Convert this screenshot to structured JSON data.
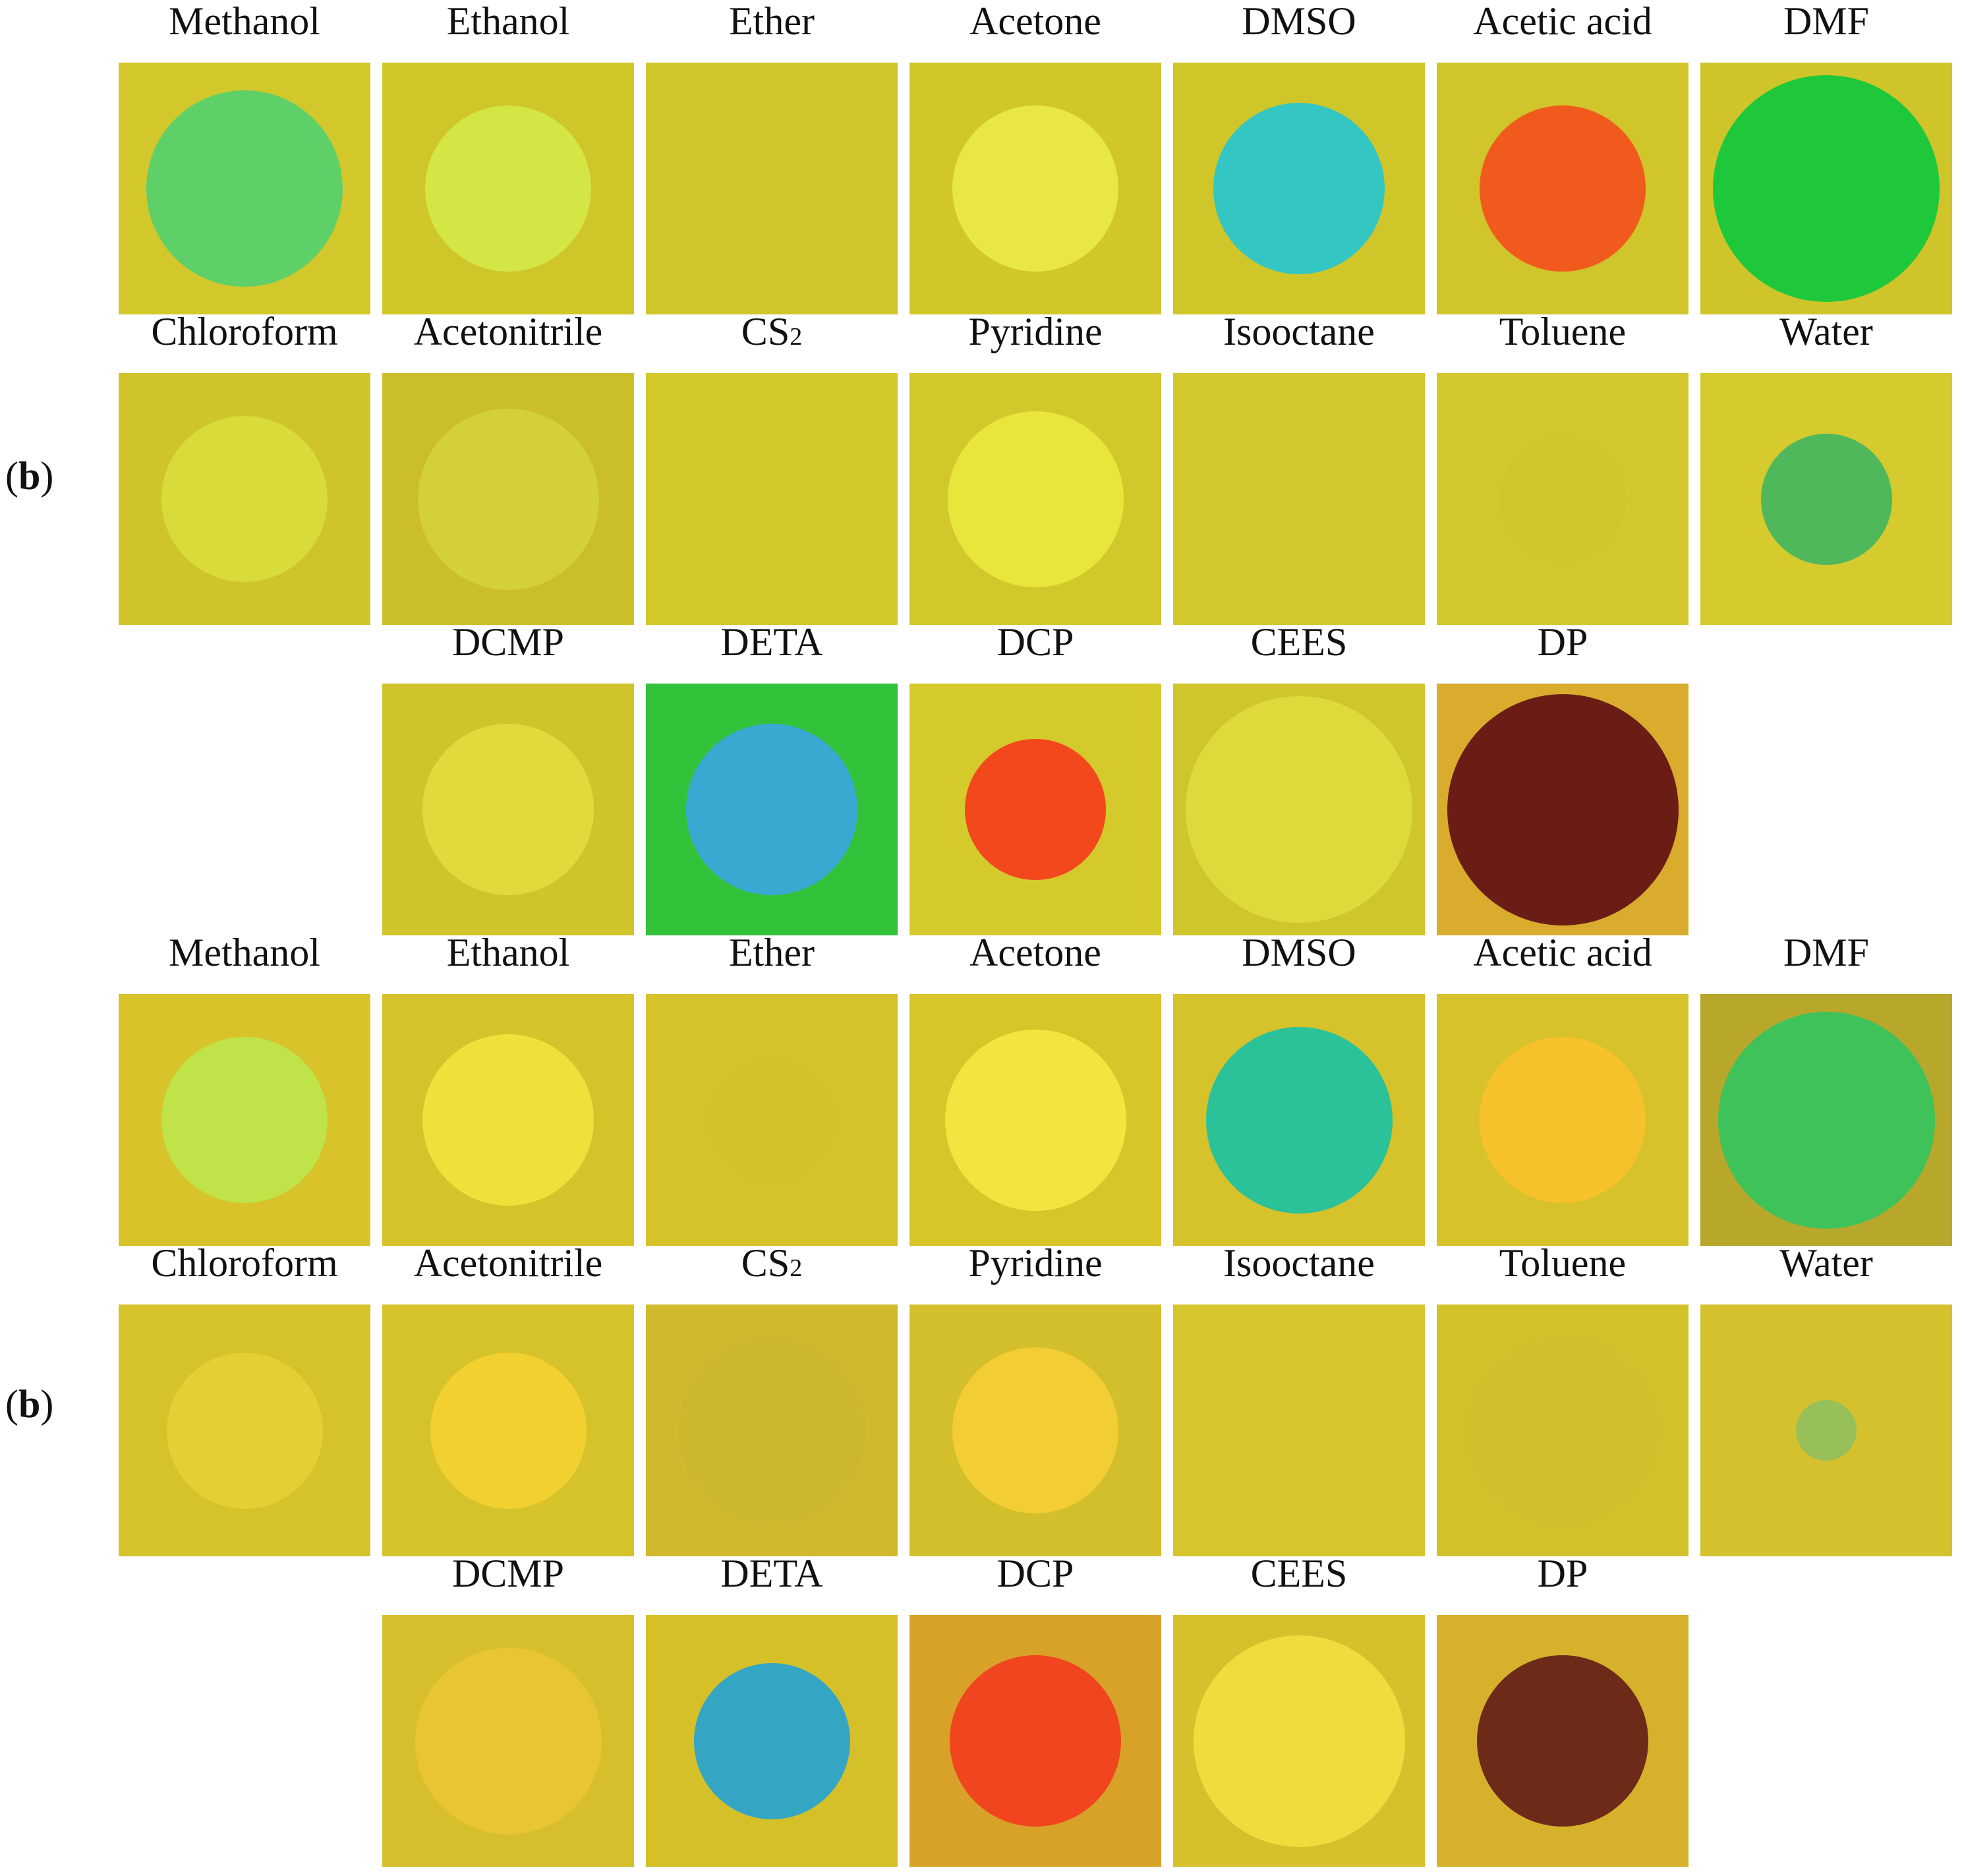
{
  "panels": [
    {
      "label": "b",
      "rows": [
        {
          "tiles": [
            {
              "name": "Methanol",
              "bg": "#d2c82c",
              "spot": "#5fd068",
              "ring": "#2c7d3a",
              "size": 0.78
            },
            {
              "name": "Ethanol",
              "bg": "#cfc629",
              "spot": "#d4e546",
              "ring": "#6e7a30",
              "size": 0.66
            },
            {
              "name": "Ether",
              "bg": "#cfc62b",
              "spot": "#d0c72e",
              "ring": "#c8c02d",
              "size": 0.55
            },
            {
              "name": "Acetone",
              "bg": "#d1c72b",
              "spot": "#e8e747",
              "ring": "#7a7330",
              "size": 0.66
            },
            {
              "name": "DMSO",
              "bg": "#cfc62a",
              "spot": "#33c6c2",
              "ring": "#1b6f5e",
              "size": 0.68
            },
            {
              "name": "Acetic acid",
              "bg": "#d0c52b",
              "spot": "#f05a1c",
              "ring": "#b33513",
              "size": 0.66
            },
            {
              "name": "DMF",
              "bg": "#cfc42a",
              "spot": "#1fc83a",
              "ring": "#0f8a24",
              "size": 0.9
            }
          ]
        },
        {
          "tiles": [
            {
              "name": "Chloroform",
              "sub": "",
              "bg": "#cfc42a",
              "spot": "#d9db3a",
              "ring": "#6d6d2f",
              "size": 0.66
            },
            {
              "name": "Acetonitrile",
              "sub": "",
              "bg": "#cbbf29",
              "spot": "#d4d039",
              "ring": "#5f5a28",
              "size": 0.72
            },
            {
              "name": "CS",
              "sub": "2",
              "bg": "#d3c82c",
              "spot": "#d3c82c",
              "ring": "#d3c82c",
              "size": 0.5
            },
            {
              "name": "Pyridine",
              "sub": "",
              "bg": "#d2c82c",
              "spot": "#e8e63a",
              "ring": "#2f3322",
              "size": 0.7
            },
            {
              "name": "Isooctane",
              "sub": "",
              "bg": "#d2c82d",
              "spot": "#d2c82d",
              "ring": "#d2c82d",
              "size": 0.5
            },
            {
              "name": "Toluene",
              "sub": "",
              "bg": "#d2c72e",
              "spot": "#d0c52d",
              "ring": "#cbc22d",
              "size": 0.5
            },
            {
              "name": "Water",
              "sub": "",
              "bg": "#d5ca2e",
              "spot": "#4fb85a",
              "ring": "#3ea455",
              "size": 0.52
            }
          ]
        },
        {
          "tiles": [
            {
              "name": "DCMP",
              "bg": "#cfc42b",
              "spot": "#e2da3c",
              "ring": "#a8a236",
              "size": 0.68
            },
            {
              "name": "DETA",
              "bg": "#32c23a",
              "spot": "#3aa9d2",
              "ring": "#2b8fa0",
              "size": 0.68
            },
            {
              "name": "DCP",
              "bg": "#d5ca2c",
              "spot": "#f2481c",
              "ring": "#e87825",
              "size": 0.56
            },
            {
              "name": "CEES",
              "bg": "#cfc52c",
              "spot": "#dfda3c",
              "ring": "#a19a35",
              "size": 0.9
            },
            {
              "name": "DP",
              "bg": "#d9ac2e",
              "spot": "#6b1d15",
              "ring": "#8a2418",
              "size": 0.92
            }
          ]
        }
      ]
    },
    {
      "label": "b",
      "rows": [
        {
          "tiles": [
            {
              "name": "Methanol",
              "bg": "#d8c42a",
              "spot": "#bfe348",
              "ring": "#5f7d2e",
              "size": 0.66
            },
            {
              "name": "Ethanol",
              "bg": "#d6c22a",
              "spot": "#f0e03a",
              "ring": "#8a7a2f",
              "size": 0.68
            },
            {
              "name": "Ether",
              "bg": "#d6c22b",
              "spot": "#d5c22b",
              "ring": "#d1bf2b",
              "size": 0.5
            },
            {
              "name": "Acetone",
              "bg": "#d8c52a",
              "spot": "#f5e440",
              "ring": "#7f752f",
              "size": 0.72
            },
            {
              "name": "DMSO",
              "bg": "#d6c22a",
              "spot": "#2bc29a",
              "ring": "#1b8a5c",
              "size": 0.74
            },
            {
              "name": "Acetic acid",
              "bg": "#d7c22b",
              "spot": "#f7c12b",
              "ring": "#c69a2d",
              "size": 0.66
            },
            {
              "name": "DMF",
              "bg": "#b7a82b",
              "spot": "#3fc25a",
              "ring": "#4a8a3c",
              "size": 0.86
            }
          ]
        },
        {
          "tiles": [
            {
              "name": "Chloroform",
              "sub": "",
              "bg": "#d6c22b",
              "spot": "#e6cf35",
              "ring": "#8a7b33",
              "size": 0.62
            },
            {
              "name": "Acetonitrile",
              "sub": "",
              "bg": "#d6c22b",
              "spot": "#f1d030",
              "ring": "#b59d2f",
              "size": 0.62
            },
            {
              "name": "CS",
              "sub": "2",
              "bg": "#d0b92c",
              "spot": "#ccb72d",
              "ring": "#bfab2d",
              "size": 0.74
            },
            {
              "name": "Pyridine",
              "sub": "",
              "bg": "#d3be2b",
              "spot": "#f2cd33",
              "ring": "#7a6b31",
              "size": 0.66
            },
            {
              "name": "Isooctane",
              "sub": "",
              "bg": "#d6c52d",
              "spot": "#d6c52d",
              "ring": "#d6c52d",
              "size": 0.5
            },
            {
              "name": "Toluene",
              "sub": "",
              "bg": "#d3c12c",
              "spot": "#d1bf2c",
              "ring": "#c4b42e",
              "size": 0.76
            },
            {
              "name": "Water",
              "sub": "",
              "bg": "#d4c12d",
              "spot": "#97c05a",
              "ring": "#88b85c",
              "size": 0.24
            }
          ]
        },
        {
          "tiles": [
            {
              "name": "DCMP",
              "bg": "#d7be2c",
              "spot": "#e9c534",
              "ring": "#c5aa32",
              "size": 0.74
            },
            {
              "name": "DETA",
              "bg": "#d6c02a",
              "spot": "#34a6c4",
              "ring": "#1a6b53",
              "size": 0.62
            },
            {
              "name": "DCP",
              "bg": "#d8a128",
              "spot": "#f0451e",
              "ring": "#e56d24",
              "size": 0.68
            },
            {
              "name": "CEES",
              "bg": "#d7c02c",
              "spot": "#f0dc3c",
              "ring": "#b8a533",
              "size": 0.84
            },
            {
              "name": "DP",
              "bg": "#d6b12c",
              "spot": "#6d2a19",
              "ring": "#7b331b",
              "size": 0.68
            }
          ]
        }
      ]
    }
  ]
}
